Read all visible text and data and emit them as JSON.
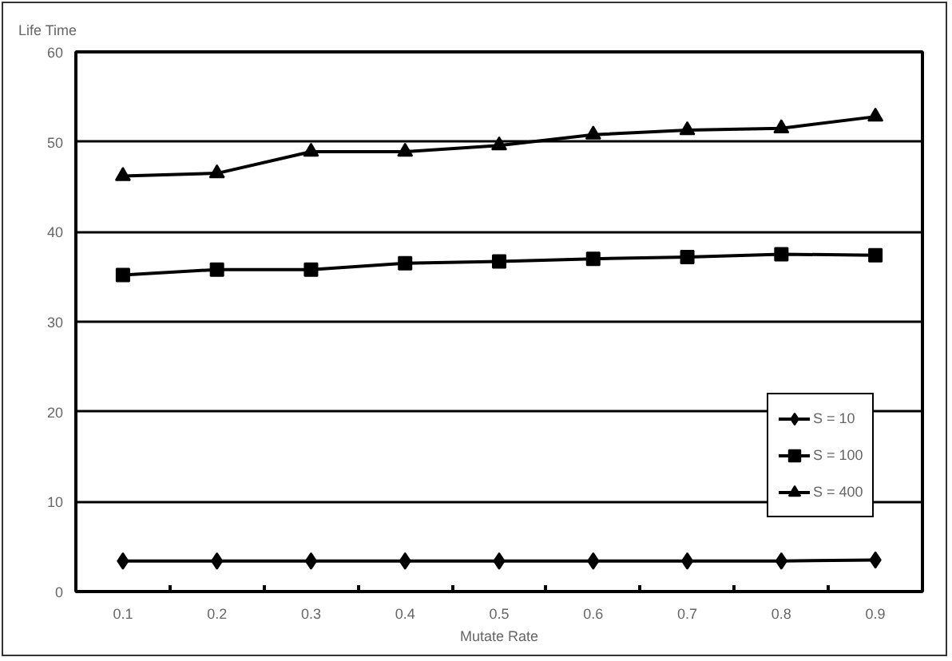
{
  "chart_data": {
    "type": "line",
    "ylabel": "Life Time",
    "xlabel": "Mutate Rate",
    "categories": [
      "0.1",
      "0.2",
      "0.3",
      "0.4",
      "0.5",
      "0.6",
      "0.7",
      "0.8",
      "0.9"
    ],
    "ylim": [
      0,
      60
    ],
    "yticks": [
      0,
      10,
      20,
      30,
      40,
      50,
      60
    ],
    "grid": "y",
    "legend": "bottom right",
    "line_style": "solid",
    "series": [
      {
        "name": "S = 10",
        "color": "#000000",
        "marker": "diamond",
        "values": [
          3.4,
          3.4,
          3.4,
          3.4,
          3.4,
          3.4,
          3.4,
          3.4,
          3.5
        ]
      },
      {
        "name": "S = 100",
        "color": "#000000",
        "marker": "square",
        "values": [
          35.2,
          35.8,
          35.8,
          36.5,
          36.7,
          37.0,
          37.2,
          37.5,
          37.4
        ]
      },
      {
        "name": "S = 400",
        "color": "#000000",
        "marker": "triangle",
        "values": [
          46.2,
          46.5,
          48.9,
          48.9,
          49.6,
          50.8,
          51.3,
          51.5,
          52.8
        ]
      }
    ]
  }
}
